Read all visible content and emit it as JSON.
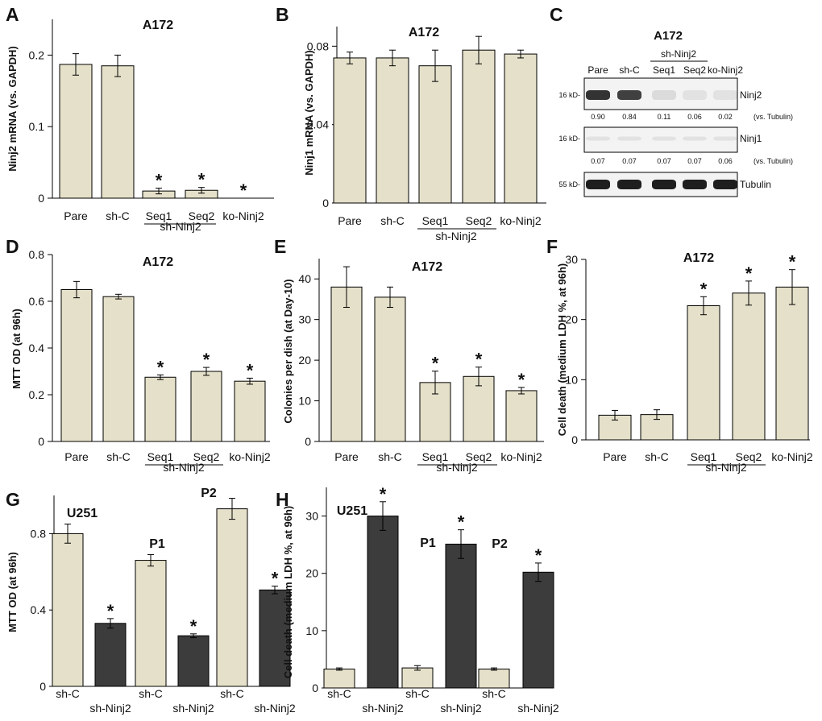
{
  "colors": {
    "light_bar": "#e5e0c9",
    "dark_bar": "#3c3c3c",
    "axis": "#000000"
  },
  "chart_data": [
    {
      "panel": "A",
      "type": "bar",
      "title": "A172",
      "ylabel": "Ninj2 mRNA (vs. GAPDH)",
      "ylim": [
        0,
        0.25
      ],
      "yticks": [
        0,
        0.1,
        0.2
      ],
      "ytick_labels": [
        "0",
        "0.1",
        "0.2"
      ],
      "categories": [
        "Pare",
        "sh-C",
        "Seq1",
        "Seq2",
        "ko-Ninj2"
      ],
      "values": [
        0.187,
        0.185,
        0.01,
        0.011,
        0
      ],
      "errors": [
        0.015,
        0.015,
        0.004,
        0.004,
        0
      ],
      "significant": [
        false,
        false,
        true,
        true,
        true
      ],
      "group_label": "sh-Ninj2"
    },
    {
      "panel": "B",
      "type": "bar",
      "title": "A172",
      "ylabel": "Ninj1 mRNA (vs. GAPDH)",
      "ylim": [
        0,
        0.09
      ],
      "yticks": [
        0,
        0.04,
        0.08
      ],
      "ytick_labels": [
        "0",
        "0.04",
        "0.08"
      ],
      "categories": [
        "Pare",
        "sh-C",
        "Seq1",
        "Seq2",
        "ko-Ninj2"
      ],
      "values": [
        0.074,
        0.074,
        0.07,
        0.078,
        0.076
      ],
      "errors": [
        0.003,
        0.004,
        0.008,
        0.007,
        0.002
      ],
      "significant": [
        false,
        false,
        false,
        false,
        false
      ],
      "group_label": "sh-Ninj2"
    },
    {
      "panel": "D",
      "type": "bar",
      "title": "A172",
      "ylabel": "MTT OD (at 96h)",
      "ylim": [
        0,
        0.8
      ],
      "yticks": [
        0,
        0.2,
        0.4,
        0.6,
        0.8
      ],
      "ytick_labels": [
        "0",
        "0.2",
        "0.4",
        "0.6",
        "0.8"
      ],
      "categories": [
        "Pare",
        "sh-C",
        "Seq1",
        "Seq2",
        "ko-Ninj2"
      ],
      "values": [
        0.65,
        0.62,
        0.275,
        0.3,
        0.258
      ],
      "errors": [
        0.035,
        0.01,
        0.01,
        0.017,
        0.013
      ],
      "significant": [
        false,
        false,
        true,
        true,
        true
      ],
      "group_label": "sh-Ninj2"
    },
    {
      "panel": "E",
      "type": "bar",
      "title": "A172",
      "ylabel": "Colonies per dish (at Day-10)",
      "ylim": [
        0,
        45
      ],
      "yticks": [
        0,
        10,
        20,
        30,
        40
      ],
      "ytick_labels": [
        "0",
        "10",
        "20",
        "30",
        "40"
      ],
      "categories": [
        "Pare",
        "sh-C",
        "Seq1",
        "Seq2",
        "ko-Ninj2"
      ],
      "values": [
        38,
        35.5,
        14.5,
        16,
        12.5
      ],
      "errors": [
        5,
        2.5,
        2.8,
        2.3,
        0.8
      ],
      "significant": [
        false,
        false,
        true,
        true,
        true
      ],
      "group_label": "sh-Ninj2"
    },
    {
      "panel": "F",
      "type": "bar",
      "title": "A172",
      "ylabel": "Cell death (medium LDH %, at 96h)",
      "ylim": [
        0,
        30
      ],
      "yticks": [
        0,
        10,
        20,
        30
      ],
      "ytick_labels": [
        "0",
        "10",
        "20",
        "30"
      ],
      "categories": [
        "Pare",
        "sh-C",
        "Seq1",
        "Seq2",
        "ko-Ninj2"
      ],
      "values": [
        4.1,
        4.2,
        22.3,
        24.4,
        25.4
      ],
      "errors": [
        0.8,
        0.8,
        1.5,
        2.0,
        2.9
      ],
      "significant": [
        false,
        false,
        true,
        true,
        true
      ],
      "group_label": "sh-Ninj2"
    },
    {
      "panel": "G",
      "type": "bar",
      "ylabel": "MTT OD (at 96h)",
      "ylim": [
        0,
        1.0
      ],
      "yticks": [
        0,
        0.4,
        0.8
      ],
      "ytick_labels": [
        "0",
        "0.4",
        "0.8"
      ],
      "categories": [
        "sh-C",
        "sh-Ninj2",
        "sh-C",
        "sh-Ninj2",
        "sh-C",
        "sh-Ninj2"
      ],
      "values": [
        0.8,
        0.33,
        0.66,
        0.265,
        0.93,
        0.505
      ],
      "errors": [
        0.05,
        0.025,
        0.03,
        0.01,
        0.055,
        0.02
      ],
      "bar_shade": [
        "light",
        "dark",
        "light",
        "dark",
        "light",
        "dark"
      ],
      "significant": [
        false,
        true,
        false,
        true,
        false,
        true
      ],
      "group_labels": [
        "U251",
        "P1",
        "P2"
      ]
    },
    {
      "panel": "H",
      "type": "bar",
      "ylabel": "Cell death (medium LDH %, at 96h)",
      "ylim": [
        0,
        35
      ],
      "yticks": [
        0,
        10,
        20,
        30
      ],
      "ytick_labels": [
        "0",
        "10",
        "20",
        "30"
      ],
      "categories": [
        "sh-C",
        "sh-Ninj2",
        "sh-C",
        "sh-Ninj2",
        "sh-C",
        "sh-Ninj2"
      ],
      "values": [
        3.3,
        30.0,
        3.5,
        25.1,
        3.3,
        20.2
      ],
      "errors": [
        0.2,
        2.5,
        0.4,
        2.5,
        0.2,
        1.6
      ],
      "bar_shade": [
        "light",
        "dark",
        "light",
        "dark",
        "light",
        "dark"
      ],
      "significant": [
        false,
        true,
        false,
        true,
        false,
        true
      ],
      "group_labels": [
        "U251",
        "P1",
        "P2"
      ]
    }
  ],
  "blot": {
    "panel": "C",
    "title": "A172",
    "group_label": "sh-Ninj2",
    "lanes": [
      "Pare",
      "sh-C",
      "Seq1",
      "Seq2",
      "ko-Ninj2"
    ],
    "rows": [
      {
        "marker": "16 kD-",
        "name": "Ninj2",
        "intensity": [
          0.9,
          0.84,
          0.11,
          0.06,
          0.02
        ]
      },
      {
        "marker": "16 kD-",
        "name": "Ninj1",
        "intensity": [
          0.07,
          0.07,
          0.07,
          0.07,
          0.06
        ]
      },
      {
        "marker": "55 kD-",
        "name": "Tubulin",
        "intensity": [
          1,
          1,
          1,
          1,
          1
        ]
      }
    ],
    "quant": [
      {
        "values": [
          "0.90",
          "0.84",
          "0.11",
          "0.06",
          "0.02"
        ],
        "unit": "(vs. Tubulin)"
      },
      {
        "values": [
          "0.07",
          "0.07",
          "0.07",
          "0.07",
          "0.06"
        ],
        "unit": "(vs. Tubulin)"
      }
    ]
  },
  "panel_letters": [
    "A",
    "B",
    "C",
    "D",
    "E",
    "F",
    "G",
    "H"
  ],
  "significance_mark": "*"
}
